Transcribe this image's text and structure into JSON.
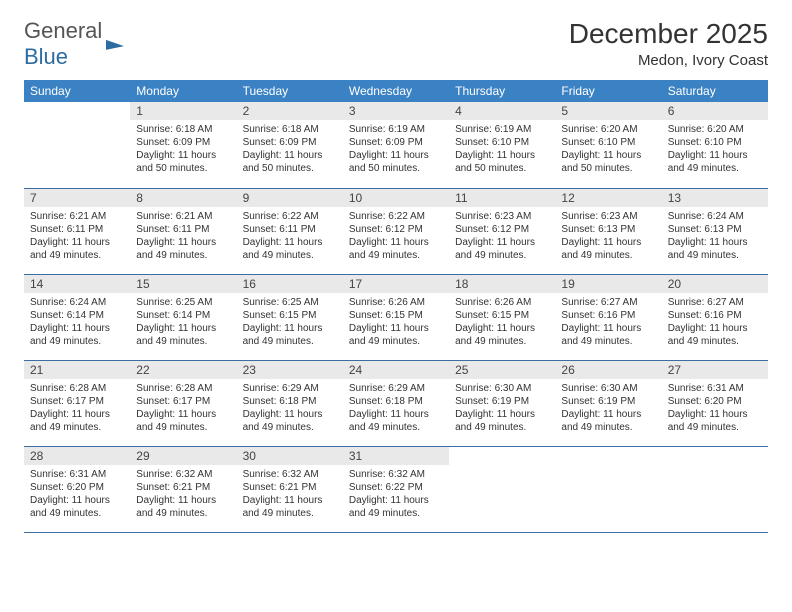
{
  "brand": {
    "part1": "General",
    "part2": "Blue"
  },
  "title": "December 2025",
  "location": "Medon, Ivory Coast",
  "colors": {
    "header_bg": "#3b82c4",
    "header_text": "#ffffff",
    "daynum_bg": "#e9e9e9",
    "row_border": "#3b6ea3",
    "brand_gray": "#555555",
    "brand_blue": "#2d6ca2"
  },
  "weekdays": [
    "Sunday",
    "Monday",
    "Tuesday",
    "Wednesday",
    "Thursday",
    "Friday",
    "Saturday"
  ],
  "weeks": [
    [
      {
        "n": "",
        "sr": "",
        "ss": "",
        "dl": ""
      },
      {
        "n": "1",
        "sr": "Sunrise: 6:18 AM",
        "ss": "Sunset: 6:09 PM",
        "dl": "Daylight: 11 hours and 50 minutes."
      },
      {
        "n": "2",
        "sr": "Sunrise: 6:18 AM",
        "ss": "Sunset: 6:09 PM",
        "dl": "Daylight: 11 hours and 50 minutes."
      },
      {
        "n": "3",
        "sr": "Sunrise: 6:19 AM",
        "ss": "Sunset: 6:09 PM",
        "dl": "Daylight: 11 hours and 50 minutes."
      },
      {
        "n": "4",
        "sr": "Sunrise: 6:19 AM",
        "ss": "Sunset: 6:10 PM",
        "dl": "Daylight: 11 hours and 50 minutes."
      },
      {
        "n": "5",
        "sr": "Sunrise: 6:20 AM",
        "ss": "Sunset: 6:10 PM",
        "dl": "Daylight: 11 hours and 50 minutes."
      },
      {
        "n": "6",
        "sr": "Sunrise: 6:20 AM",
        "ss": "Sunset: 6:10 PM",
        "dl": "Daylight: 11 hours and 49 minutes."
      }
    ],
    [
      {
        "n": "7",
        "sr": "Sunrise: 6:21 AM",
        "ss": "Sunset: 6:11 PM",
        "dl": "Daylight: 11 hours and 49 minutes."
      },
      {
        "n": "8",
        "sr": "Sunrise: 6:21 AM",
        "ss": "Sunset: 6:11 PM",
        "dl": "Daylight: 11 hours and 49 minutes."
      },
      {
        "n": "9",
        "sr": "Sunrise: 6:22 AM",
        "ss": "Sunset: 6:11 PM",
        "dl": "Daylight: 11 hours and 49 minutes."
      },
      {
        "n": "10",
        "sr": "Sunrise: 6:22 AM",
        "ss": "Sunset: 6:12 PM",
        "dl": "Daylight: 11 hours and 49 minutes."
      },
      {
        "n": "11",
        "sr": "Sunrise: 6:23 AM",
        "ss": "Sunset: 6:12 PM",
        "dl": "Daylight: 11 hours and 49 minutes."
      },
      {
        "n": "12",
        "sr": "Sunrise: 6:23 AM",
        "ss": "Sunset: 6:13 PM",
        "dl": "Daylight: 11 hours and 49 minutes."
      },
      {
        "n": "13",
        "sr": "Sunrise: 6:24 AM",
        "ss": "Sunset: 6:13 PM",
        "dl": "Daylight: 11 hours and 49 minutes."
      }
    ],
    [
      {
        "n": "14",
        "sr": "Sunrise: 6:24 AM",
        "ss": "Sunset: 6:14 PM",
        "dl": "Daylight: 11 hours and 49 minutes."
      },
      {
        "n": "15",
        "sr": "Sunrise: 6:25 AM",
        "ss": "Sunset: 6:14 PM",
        "dl": "Daylight: 11 hours and 49 minutes."
      },
      {
        "n": "16",
        "sr": "Sunrise: 6:25 AM",
        "ss": "Sunset: 6:15 PM",
        "dl": "Daylight: 11 hours and 49 minutes."
      },
      {
        "n": "17",
        "sr": "Sunrise: 6:26 AM",
        "ss": "Sunset: 6:15 PM",
        "dl": "Daylight: 11 hours and 49 minutes."
      },
      {
        "n": "18",
        "sr": "Sunrise: 6:26 AM",
        "ss": "Sunset: 6:15 PM",
        "dl": "Daylight: 11 hours and 49 minutes."
      },
      {
        "n": "19",
        "sr": "Sunrise: 6:27 AM",
        "ss": "Sunset: 6:16 PM",
        "dl": "Daylight: 11 hours and 49 minutes."
      },
      {
        "n": "20",
        "sr": "Sunrise: 6:27 AM",
        "ss": "Sunset: 6:16 PM",
        "dl": "Daylight: 11 hours and 49 minutes."
      }
    ],
    [
      {
        "n": "21",
        "sr": "Sunrise: 6:28 AM",
        "ss": "Sunset: 6:17 PM",
        "dl": "Daylight: 11 hours and 49 minutes."
      },
      {
        "n": "22",
        "sr": "Sunrise: 6:28 AM",
        "ss": "Sunset: 6:17 PM",
        "dl": "Daylight: 11 hours and 49 minutes."
      },
      {
        "n": "23",
        "sr": "Sunrise: 6:29 AM",
        "ss": "Sunset: 6:18 PM",
        "dl": "Daylight: 11 hours and 49 minutes."
      },
      {
        "n": "24",
        "sr": "Sunrise: 6:29 AM",
        "ss": "Sunset: 6:18 PM",
        "dl": "Daylight: 11 hours and 49 minutes."
      },
      {
        "n": "25",
        "sr": "Sunrise: 6:30 AM",
        "ss": "Sunset: 6:19 PM",
        "dl": "Daylight: 11 hours and 49 minutes."
      },
      {
        "n": "26",
        "sr": "Sunrise: 6:30 AM",
        "ss": "Sunset: 6:19 PM",
        "dl": "Daylight: 11 hours and 49 minutes."
      },
      {
        "n": "27",
        "sr": "Sunrise: 6:31 AM",
        "ss": "Sunset: 6:20 PM",
        "dl": "Daylight: 11 hours and 49 minutes."
      }
    ],
    [
      {
        "n": "28",
        "sr": "Sunrise: 6:31 AM",
        "ss": "Sunset: 6:20 PM",
        "dl": "Daylight: 11 hours and 49 minutes."
      },
      {
        "n": "29",
        "sr": "Sunrise: 6:32 AM",
        "ss": "Sunset: 6:21 PM",
        "dl": "Daylight: 11 hours and 49 minutes."
      },
      {
        "n": "30",
        "sr": "Sunrise: 6:32 AM",
        "ss": "Sunset: 6:21 PM",
        "dl": "Daylight: 11 hours and 49 minutes."
      },
      {
        "n": "31",
        "sr": "Sunrise: 6:32 AM",
        "ss": "Sunset: 6:22 PM",
        "dl": "Daylight: 11 hours and 49 minutes."
      },
      {
        "n": "",
        "sr": "",
        "ss": "",
        "dl": ""
      },
      {
        "n": "",
        "sr": "",
        "ss": "",
        "dl": ""
      },
      {
        "n": "",
        "sr": "",
        "ss": "",
        "dl": ""
      }
    ]
  ]
}
